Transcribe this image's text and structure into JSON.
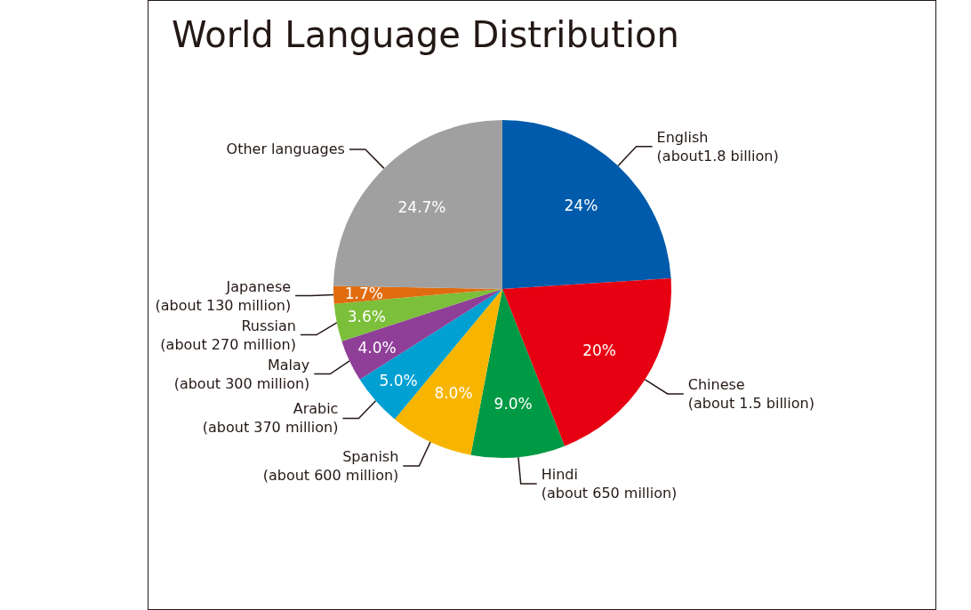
{
  "chart_data": {
    "type": "pie",
    "title": "World Language Distribution",
    "categories": [
      "English\n(about1.8 billion)",
      "Chinese\n(about 1.5 billion)",
      "Hindi\n(about 650 million)",
      "Spanish\n(about 600 million)",
      "Arabic\n(about 370 million)",
      "Malay\n(about 300 million)",
      "Russian\n(about 270 million)",
      "Japanese\n(about 130 million)",
      "Other languages"
    ],
    "values": [
      24,
      20,
      9.0,
      8.0,
      5.0,
      4.0,
      3.6,
      1.7,
      24.7
    ],
    "value_labels": [
      "24%",
      "20%",
      "9.0%",
      "8.0%",
      "5.0%",
      "4.0%",
      "3.6%",
      "1.7%",
      "24.7%"
    ],
    "colors": [
      "#005bac",
      "#e60012",
      "#009944",
      "#f8b500",
      "#00a0d2",
      "#8f3f98",
      "#7cbf3a",
      "#e06c0f",
      "#a0a0a0"
    ],
    "legend": false
  }
}
